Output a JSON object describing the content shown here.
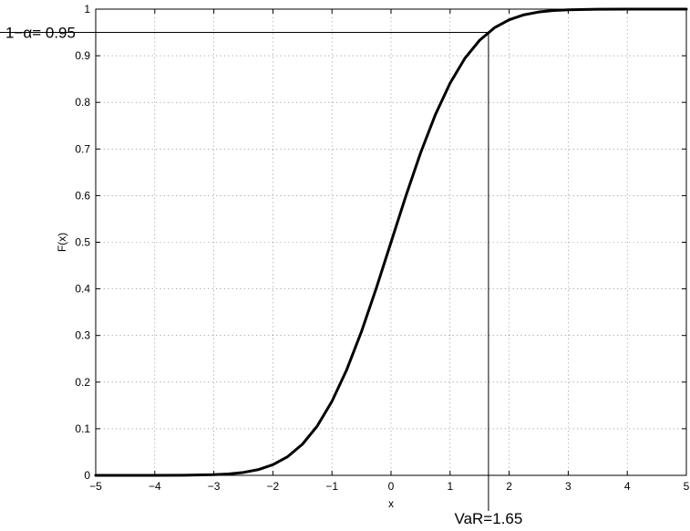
{
  "chart_data": {
    "type": "line",
    "title": "",
    "xlabel": "x",
    "ylabel": "F(x)",
    "xlim": [
      -5,
      5
    ],
    "ylim": [
      0,
      1
    ],
    "grid": true,
    "x_ticks": [
      -5,
      -4,
      -3,
      -2,
      -1,
      0,
      1,
      2,
      3,
      4,
      5
    ],
    "x_tick_labels": [
      "−5",
      "−4",
      "−3",
      "−2",
      "−1",
      "0",
      "1",
      "2",
      "3",
      "4",
      "5"
    ],
    "y_ticks": [
      0,
      0.1,
      0.2,
      0.3,
      0.4,
      0.5,
      0.6,
      0.7,
      0.8,
      0.9,
      1
    ],
    "y_tick_labels": [
      "0",
      "0.1",
      "0.2",
      "0.3",
      "0.4",
      "0.5",
      "0.6",
      "0.7",
      "0.8",
      "0.9",
      "1"
    ],
    "series": [
      {
        "color": "#000000",
        "x": [
          -5,
          -4.5,
          -4,
          -3.5,
          -3,
          -2.75,
          -2.5,
          -2.25,
          -2,
          -1.75,
          -1.5,
          -1.25,
          -1,
          -0.75,
          -0.5,
          -0.25,
          0,
          0.25,
          0.5,
          0.75,
          1,
          1.25,
          1.5,
          1.75,
          2,
          2.25,
          2.5,
          2.75,
          3,
          3.5,
          4,
          4.5,
          5
        ],
        "y": [
          3e-07,
          3.4e-06,
          3.17e-05,
          0.000233,
          0.00135,
          0.00298,
          0.00621,
          0.0122,
          0.0228,
          0.0401,
          0.0668,
          0.1056,
          0.1587,
          0.2266,
          0.3085,
          0.4013,
          0.5,
          0.5987,
          0.6915,
          0.7734,
          0.8413,
          0.8944,
          0.9332,
          0.9599,
          0.9772,
          0.9878,
          0.9938,
          0.997,
          0.99865,
          0.99977,
          0.99997,
          0.999997,
          0.9999997
        ]
      }
    ],
    "annotations": {
      "var_x": 1.65,
      "var_label": "VaR=1.65",
      "level_y": 0.95,
      "level_label": "1−α= 0.95"
    }
  }
}
